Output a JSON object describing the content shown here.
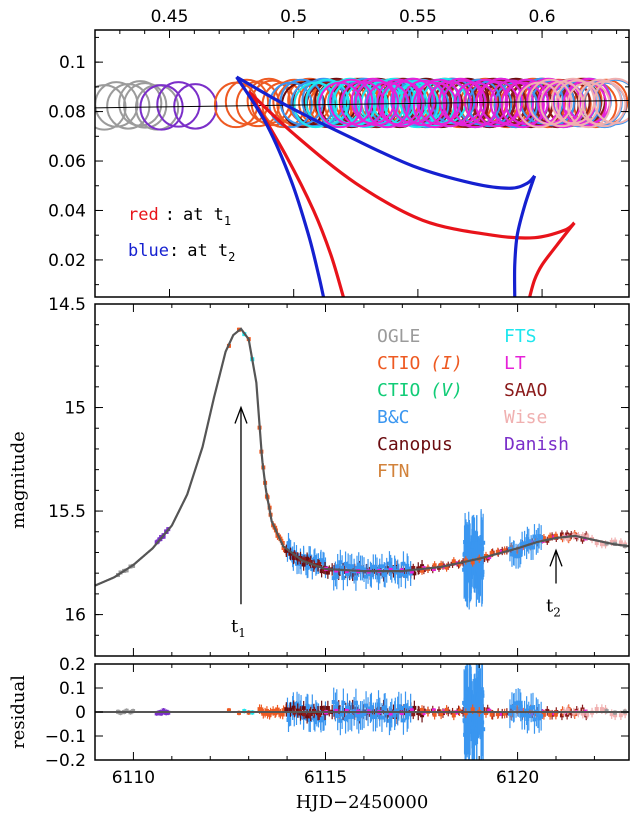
{
  "chart_data": [
    {
      "panel": "caustic",
      "type": "scatter",
      "top_axis": {
        "xlim": [
          0.42,
          0.635
        ],
        "ticks": [
          0.45,
          0.5,
          0.55,
          0.6
        ],
        "tick_labels": [
          "0.45",
          "0.5",
          "0.55",
          "0.6"
        ]
      },
      "left_axis": {
        "ylim": [
          0.005,
          0.113
        ],
        "ticks": [
          0.02,
          0.04,
          0.06,
          0.08,
          0.1
        ],
        "tick_labels": [
          "0.02",
          "0.04",
          "0.06",
          "0.08",
          "0.1"
        ]
      },
      "annotations": {
        "red": {
          "name": "red",
          "sep": ":",
          "text": "at t",
          "sub": "1",
          "color": "#e8131a"
        },
        "blue": {
          "name": "blue",
          "sep": ":",
          "text": "at t",
          "sub": "2",
          "color": "#1520d0"
        }
      },
      "trajectory": {
        "x": [
          0.42,
          0.635
        ],
        "y": [
          0.0815,
          0.0845
        ]
      },
      "caustic_t1": {
        "color": "#e8131a",
        "arcs": [
          [
            [
              0.482,
              0.088
            ],
            [
              0.5,
              0.071
            ],
            [
              0.525,
              0.051
            ],
            [
              0.552,
              0.036
            ],
            [
              0.58,
              0.03
            ],
            [
              0.597,
              0.029
            ],
            [
              0.609,
              0.032
            ],
            [
              0.613,
              0.035
            ]
          ],
          [
            [
              0.482,
              0.088
            ],
            [
              0.497,
              0.062
            ],
            [
              0.508,
              0.04
            ],
            [
              0.515,
              0.022
            ],
            [
              0.52,
              0.005
            ]
          ],
          [
            [
              0.613,
              0.035
            ],
            [
              0.606,
              0.026
            ],
            [
              0.6,
              0.018
            ],
            [
              0.597,
              0.012
            ],
            [
              0.595,
              0.005
            ]
          ]
        ]
      },
      "caustic_t2": {
        "color": "#1520d0",
        "arcs": [
          [
            [
              0.477,
              0.094
            ],
            [
              0.498,
              0.082
            ],
            [
              0.522,
              0.07
            ],
            [
              0.548,
              0.058
            ],
            [
              0.572,
              0.051
            ],
            [
              0.587,
              0.049
            ],
            [
              0.594,
              0.051
            ],
            [
              0.597,
              0.054
            ]
          ],
          [
            [
              0.477,
              0.094
            ],
            [
              0.489,
              0.075
            ],
            [
              0.499,
              0.052
            ],
            [
              0.506,
              0.03
            ],
            [
              0.51,
              0.014
            ],
            [
              0.512,
              0.005
            ]
          ],
          [
            [
              0.597,
              0.054
            ],
            [
              0.593,
              0.042
            ],
            [
              0.59,
              0.03
            ],
            [
              0.589,
              0.018
            ],
            [
              0.589,
              0.005
            ]
          ]
        ]
      },
      "source_circles": [
        {
          "observatory": "OGLE",
          "color": "#9b9b9b",
          "x_range": [
            0.425,
            0.445
          ],
          "y": 0.0825,
          "r": 0.009
        },
        {
          "observatory": "Danish",
          "color": "#7b2fc9",
          "x_range": [
            0.448,
            0.46
          ],
          "y": 0.0825,
          "r": 0.009
        },
        {
          "observatory": "CTIO (I)",
          "color": "#ee5a22",
          "x_range": [
            0.478,
            0.625
          ],
          "y": 0.0835,
          "r": 0.009
        },
        {
          "observatory": "Canopus",
          "color": "#6b0c10",
          "x_range": [
            0.505,
            0.6
          ],
          "y": 0.0835,
          "r": 0.009
        },
        {
          "observatory": "SAAO",
          "color": "#8a1a1a",
          "x_range": [
            0.515,
            0.618
          ],
          "y": 0.0835,
          "r": 0.009
        },
        {
          "observatory": "B&C",
          "color": "#3a96f0",
          "x_range": [
            0.5,
            0.63
          ],
          "y": 0.0835,
          "r": 0.009
        },
        {
          "observatory": "FTS",
          "color": "#1ee6ee",
          "x_range": [
            0.51,
            0.56
          ],
          "y": 0.0835,
          "r": 0.009
        },
        {
          "observatory": "LT",
          "color": "#e621d8",
          "x_range": [
            0.52,
            0.62
          ],
          "y": 0.0835,
          "r": 0.009
        },
        {
          "observatory": "Wise",
          "color": "#f0b0b0",
          "x_range": [
            0.6,
            0.63
          ],
          "y": 0.0835,
          "r": 0.009
        }
      ]
    },
    {
      "panel": "lightcurve",
      "type": "scatter",
      "ylabel": "magnitude",
      "ylim": [
        16.2,
        14.5
      ],
      "yticks": [
        14.5,
        15,
        15.5,
        16
      ],
      "ytick_labels": [
        "14.5",
        "15",
        "15.5",
        "16"
      ],
      "xlim": [
        6109.0,
        6122.9
      ],
      "model_curve": [
        [
          6109.0,
          15.86
        ],
        [
          6109.5,
          15.82
        ],
        [
          6110.0,
          15.76
        ],
        [
          6110.5,
          15.68
        ],
        [
          6111.0,
          15.57
        ],
        [
          6111.4,
          15.42
        ],
        [
          6111.8,
          15.19
        ],
        [
          6112.1,
          14.95
        ],
        [
          6112.4,
          14.73
        ],
        [
          6112.6,
          14.65
        ],
        [
          6112.8,
          14.62
        ],
        [
          6113.0,
          14.67
        ],
        [
          6113.2,
          14.88
        ],
        [
          6113.35,
          15.25
        ],
        [
          6113.45,
          15.4
        ],
        [
          6113.6,
          15.55
        ],
        [
          6113.9,
          15.67
        ],
        [
          6114.4,
          15.74
        ],
        [
          6115.0,
          15.78
        ],
        [
          6116.0,
          15.79
        ],
        [
          6117.0,
          15.79
        ],
        [
          6118.0,
          15.77
        ],
        [
          6119.0,
          15.73
        ],
        [
          6120.0,
          15.68
        ],
        [
          6120.5,
          15.65
        ],
        [
          6121.0,
          15.63
        ],
        [
          6121.5,
          15.62
        ],
        [
          6122.0,
          15.64
        ],
        [
          6122.5,
          15.66
        ],
        [
          6122.9,
          15.67
        ]
      ],
      "arrows": [
        {
          "label": "t",
          "sub": "1",
          "x": 6112.8,
          "y_tip": 15.0,
          "y_tail": 15.95
        },
        {
          "label": "t",
          "sub": "2",
          "x": 6121.0,
          "y_tip": 15.69,
          "y_tail": 15.85
        }
      ],
      "legend": [
        {
          "name": "OGLE",
          "color": "#9b9b9b"
        },
        {
          "name": "CTIO",
          "suffix": "(I)",
          "color": "#ee5a22"
        },
        {
          "name": "CTIO",
          "suffix": "(V)",
          "color": "#11cc77"
        },
        {
          "name": "B&C",
          "color": "#3a96f0"
        },
        {
          "name": "Canopus",
          "color": "#6b0c10"
        },
        {
          "name": "FTN",
          "color": "#d2823a"
        },
        {
          "name": "FTS",
          "color": "#1ee6ee"
        },
        {
          "name": "LT",
          "color": "#e621d8"
        },
        {
          "name": "SAAO",
          "color": "#8a1a1a"
        },
        {
          "name": "Wise",
          "color": "#f0b0b0"
        },
        {
          "name": "Danish",
          "color": "#7b2fc9"
        }
      ],
      "data_groups": [
        {
          "observatory": "OGLE",
          "color": "#9b9b9b",
          "x_range": [
            6109.6,
            6110.0
          ],
          "n": 6,
          "err": 0.01
        },
        {
          "observatory": "Danish",
          "color": "#7b2fc9",
          "x_range": [
            6110.6,
            6110.9
          ],
          "n": 10,
          "err": 0.01
        },
        {
          "observatory": "CTIO (I)",
          "color": "#ee5a22",
          "x_range": [
            6112.5,
            6113.0
          ],
          "n": 3,
          "err": 0.01
        },
        {
          "observatory": "FTS",
          "color": "#1ee6ee",
          "x_range": [
            6112.9,
            6113.1
          ],
          "n": 2,
          "err": 0.01
        },
        {
          "observatory": "CTIO (I)",
          "color": "#ee5a22",
          "x_range": [
            6113.3,
            6114.0
          ],
          "n": 18,
          "err": 0.02
        },
        {
          "observatory": "B&C",
          "color": "#3a96f0",
          "x_range": [
            6114.0,
            6115.0
          ],
          "n": 30,
          "err": 0.05
        },
        {
          "observatory": "Canopus",
          "color": "#6b0c10",
          "x_range": [
            6114.0,
            6117.5
          ],
          "n": 40,
          "err": 0.03
        },
        {
          "observatory": "SAAO",
          "color": "#8a1a1a",
          "x_range": [
            6114.2,
            6121.8
          ],
          "n": 60,
          "err": 0.02
        },
        {
          "observatory": "B&C",
          "color": "#3a96f0",
          "x_range": [
            6115.2,
            6117.2
          ],
          "n": 45,
          "err": 0.06
        },
        {
          "observatory": "LT",
          "color": "#e621d8",
          "x_range": [
            6115.0,
            6121.8
          ],
          "n": 25,
          "err": 0.01
        },
        {
          "observatory": "B&C",
          "color": "#3a96f0",
          "x_range": [
            6118.6,
            6119.1
          ],
          "n": 60,
          "err": 0.14
        },
        {
          "observatory": "CTIO (I)",
          "color": "#ee5a22",
          "x_range": [
            6117.5,
            6121.5
          ],
          "n": 25,
          "err": 0.02
        },
        {
          "observatory": "B&C",
          "color": "#3a96f0",
          "x_range": [
            6119.8,
            6120.6
          ],
          "n": 20,
          "err": 0.06
        },
        {
          "observatory": "Wise",
          "color": "#f0b0b0",
          "x_range": [
            6121.2,
            6122.8
          ],
          "n": 14,
          "err": 0.02
        },
        {
          "observatory": "OGLE",
          "color": "#9b9b9b",
          "x_range": [
            6122.3,
            6122.8
          ],
          "n": 3,
          "err": 0.01
        }
      ]
    },
    {
      "panel": "residual",
      "type": "scatter",
      "ylabel": "residual",
      "xlabel": "HJD−2450000",
      "ylim": [
        -0.2,
        0.2
      ],
      "yticks": [
        -0.2,
        -0.1,
        0,
        0.1,
        0.2
      ],
      "ytick_labels": [
        "−0.2",
        "−0.1",
        "0",
        "0.1",
        "0.2"
      ],
      "xlim": [
        6109.0,
        6122.9
      ],
      "xticks": [
        6110,
        6115,
        6120
      ],
      "xtick_labels": [
        "6110",
        "6115",
        "6120"
      ]
    }
  ]
}
